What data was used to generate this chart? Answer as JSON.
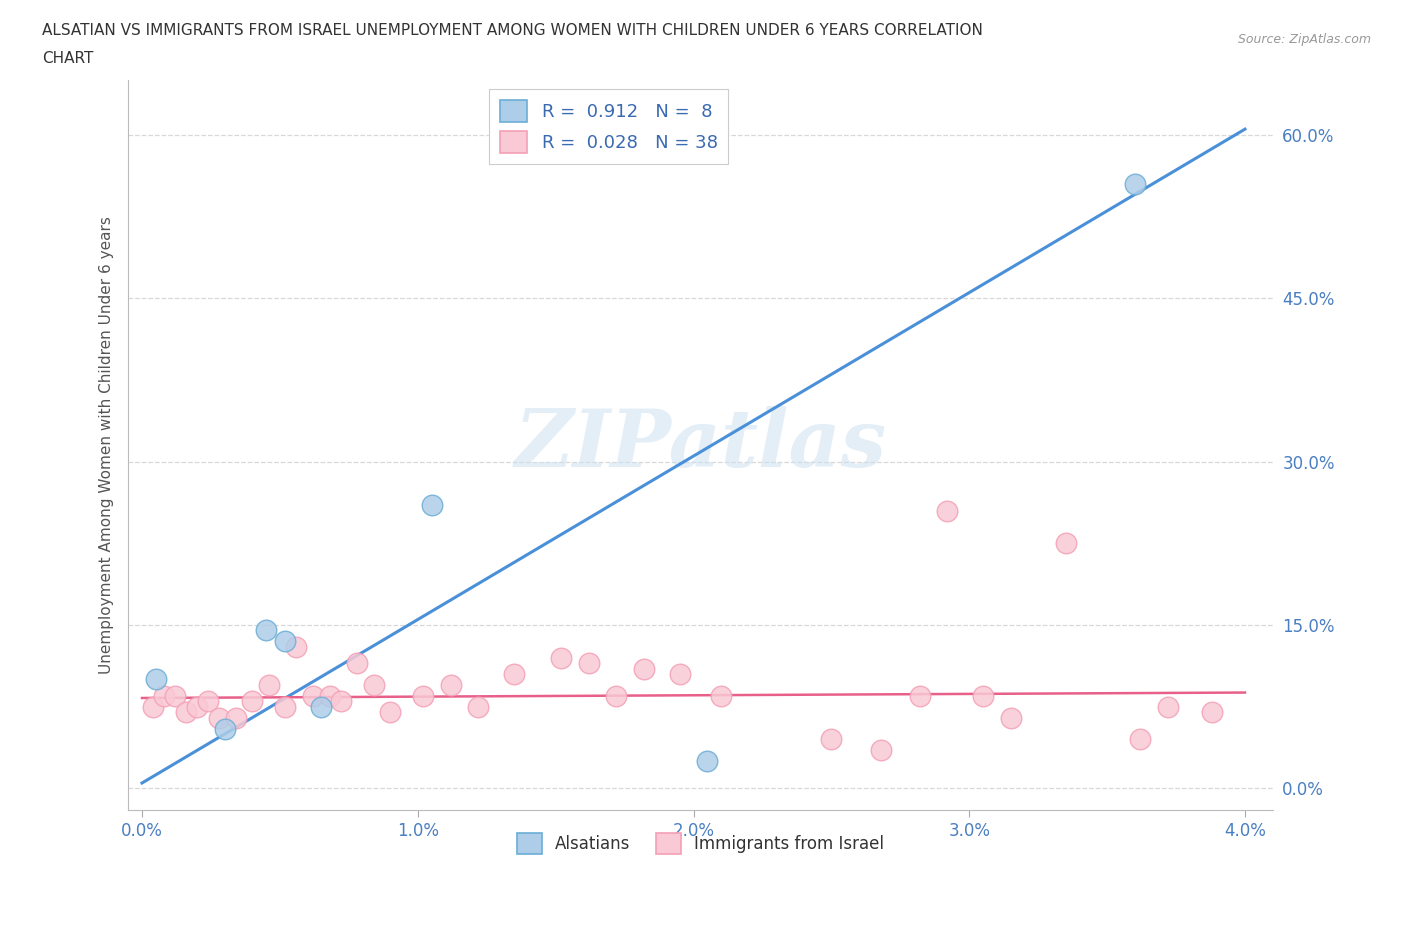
{
  "title_line1": "ALSATIAN VS IMMIGRANTS FROM ISRAEL UNEMPLOYMENT AMONG WOMEN WITH CHILDREN UNDER 6 YEARS CORRELATION",
  "title_line2": "CHART",
  "source": "Source: ZipAtlas.com",
  "ylabel": "Unemployment Among Women with Children Under 6 years",
  "x_tick_labels": [
    "0.0%",
    "1.0%",
    "2.0%",
    "3.0%",
    "4.0%"
  ],
  "x_ticks": [
    0.0,
    1.0,
    2.0,
    3.0,
    4.0
  ],
  "y_tick_labels": [
    "0.0%",
    "15.0%",
    "30.0%",
    "45.0%",
    "60.0%"
  ],
  "y_ticks": [
    0.0,
    15.0,
    30.0,
    45.0,
    60.0
  ],
  "xlim": [
    -0.05,
    4.1
  ],
  "ylim": [
    -2.0,
    65.0
  ],
  "blue_color": "#6baed6",
  "blue_fill": "#aecde8",
  "pink_color": "#f4a0b5",
  "pink_fill": "#f9c9d5",
  "blue_line_color": "#4a90d9",
  "pink_line_color": "#e8608a",
  "legend_blue_R": "0.912",
  "legend_blue_N": "8",
  "legend_pink_R": "0.028",
  "legend_pink_N": "38",
  "watermark_text": "ZIPatlas",
  "blue_line_x0": 0.0,
  "blue_line_y0": 0.5,
  "blue_line_x1": 4.0,
  "blue_line_y1": 60.5,
  "pink_line_x0": 0.0,
  "pink_line_y0": 8.3,
  "pink_line_x1": 4.0,
  "pink_line_y1": 8.8,
  "alsatian_x": [
    0.05,
    0.3,
    0.45,
    0.52,
    0.65,
    1.05,
    2.05,
    3.6
  ],
  "alsatian_y": [
    10.0,
    5.5,
    14.5,
    13.5,
    7.5,
    26.0,
    2.5,
    55.5
  ],
  "israel_x": [
    0.04,
    0.08,
    0.12,
    0.16,
    0.2,
    0.24,
    0.28,
    0.34,
    0.4,
    0.46,
    0.52,
    0.56,
    0.62,
    0.68,
    0.72,
    0.78,
    0.84,
    0.9,
    1.02,
    1.12,
    1.22,
    1.35,
    1.52,
    1.62,
    1.72,
    1.82,
    1.95,
    2.1,
    2.5,
    2.68,
    2.82,
    2.92,
    3.05,
    3.15,
    3.35,
    3.62,
    3.72,
    3.88
  ],
  "israel_y": [
    7.5,
    8.5,
    8.5,
    7.0,
    7.5,
    8.0,
    6.5,
    6.5,
    8.0,
    9.5,
    7.5,
    13.0,
    8.5,
    8.5,
    8.0,
    11.5,
    9.5,
    7.0,
    8.5,
    9.5,
    7.5,
    10.5,
    12.0,
    11.5,
    8.5,
    11.0,
    10.5,
    8.5,
    4.5,
    3.5,
    8.5,
    25.5,
    8.5,
    6.5,
    22.5,
    4.5,
    7.5,
    7.0
  ],
  "grid_color": "#d8d8d8",
  "background_color": "#ffffff",
  "plot_bg_color": "#ffffff"
}
